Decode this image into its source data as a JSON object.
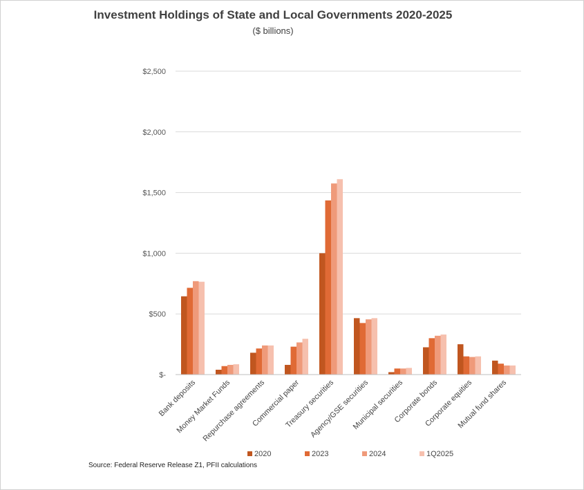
{
  "chart_data": {
    "type": "bar",
    "title": "Investment Holdings of State and Local Governments 2020-2025",
    "subtitle": "($ billions)",
    "source": "Source:  Federal Reserve Release  Z1, PFII calculations",
    "ylim": [
      0,
      2500
    ],
    "yticks": [
      "$-",
      "$500",
      "$1,000",
      "$1,500",
      "$2,000",
      "$2,500"
    ],
    "ytick_values": [
      0,
      500,
      1000,
      1500,
      2000,
      2500
    ],
    "grid": true,
    "legend_position": "bottom",
    "categories": [
      "Bank deposits",
      "Money Market Funds",
      "Repurchase agreements",
      "Commercial paper",
      "Treasury securities",
      "Agency/GSE securities",
      "Municipal securities",
      "Corporate bonds",
      "Corporate equities",
      "Mutual fund shares"
    ],
    "series": [
      {
        "name": "2020",
        "color": "#c0561f",
        "values": [
          645,
          40,
          180,
          80,
          1000,
          465,
          20,
          225,
          250,
          115
        ]
      },
      {
        "name": "2023",
        "color": "#e06a35",
        "values": [
          715,
          70,
          215,
          230,
          1435,
          425,
          50,
          300,
          150,
          90
        ]
      },
      {
        "name": "2024",
        "color": "#ef9a7a",
        "values": [
          770,
          80,
          240,
          265,
          1575,
          455,
          50,
          320,
          145,
          75
        ]
      },
      {
        "name": "1Q2025",
        "color": "#f6c0ae",
        "values": [
          765,
          85,
          240,
          295,
          1610,
          465,
          55,
          330,
          150,
          75
        ]
      }
    ]
  }
}
